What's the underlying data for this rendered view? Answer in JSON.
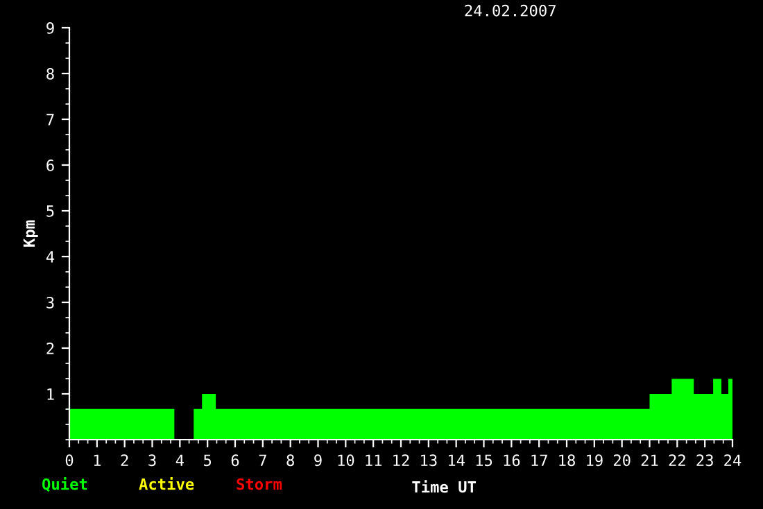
{
  "chart_data": {
    "type": "histogram",
    "title": "24.02.2007",
    "xlabel": "Time UT",
    "ylabel": "Kpm",
    "bins": [
      0,
      3.8,
      4.5,
      4.8,
      5.3,
      21,
      21.8,
      22.6,
      23.3,
      23.6,
      23.85,
      24
    ],
    "series": [
      {
        "name": "Quiet",
        "color": "#00ff00",
        "values": [
          0.67,
          null,
          0.67,
          1,
          0.67,
          1,
          1.33,
          1,
          1.33,
          1,
          1.33
        ]
      }
    ],
    "annotations": [
      "Active",
      "Storm"
    ],
    "legend": "bottom left",
    "grid": false,
    "xlim": [
      0,
      24
    ],
    "xticks": [
      0,
      1,
      2,
      3,
      4,
      5,
      6,
      7,
      8,
      9,
      10,
      11,
      12,
      13,
      14,
      15,
      16,
      17,
      18,
      19,
      20,
      21,
      22,
      23,
      24
    ],
    "ylim": [
      0,
      9
    ],
    "yticks": [
      1,
      2,
      3,
      4,
      5,
      6,
      7,
      8,
      9
    ]
  }
}
